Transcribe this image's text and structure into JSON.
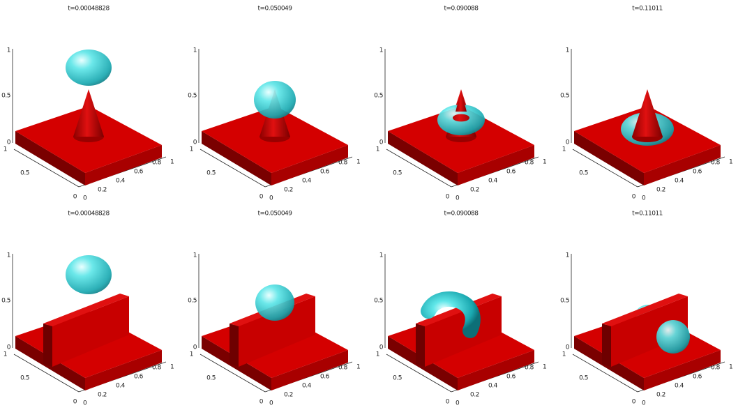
{
  "panels": [
    {
      "title": "t=0.00048828",
      "z_ticks": [
        "0",
        "0.5",
        "1"
      ],
      "y_ticks": [
        "0",
        "0.5",
        "1"
      ],
      "x_ticks": [
        "0",
        "0.2",
        "0.4",
        "0.6",
        "0.8",
        "1"
      ]
    },
    {
      "title": "t=0.050049",
      "z_ticks": [
        "0",
        "0.5",
        "1"
      ],
      "y_ticks": [
        "0",
        "0.5",
        "1"
      ],
      "x_ticks": [
        "0",
        "0.2",
        "0.4",
        "0.6",
        "0.8",
        "1"
      ]
    },
    {
      "title": "t=0.090088",
      "z_ticks": [
        "0",
        "0.5",
        "1"
      ],
      "y_ticks": [
        "0",
        "0.5",
        "1"
      ],
      "x_ticks": [
        "0",
        "0.2",
        "0.4",
        "0.6",
        "0.8",
        "1"
      ]
    },
    {
      "title": "t=0.11011",
      "z_ticks": [
        "0",
        "0.5",
        "1"
      ],
      "y_ticks": [
        "0",
        "0.5",
        "1"
      ],
      "x_ticks": [
        "0",
        "0.2",
        "0.4",
        "0.6",
        "0.8",
        "1"
      ]
    },
    {
      "title": "t=0.00048828",
      "z_ticks": [
        "0",
        "0.5",
        "1"
      ],
      "y_ticks": [
        "0",
        "0.5",
        "1"
      ],
      "x_ticks": [
        "0",
        "0.2",
        "0.4",
        "0.6",
        "0.8",
        "1"
      ]
    },
    {
      "title": "t=0.050049",
      "z_ticks": [
        "0",
        "0.5",
        "1"
      ],
      "y_ticks": [
        "0",
        "0.5",
        "1"
      ],
      "x_ticks": [
        "0",
        "0.2",
        "0.4",
        "0.6",
        "0.8",
        "1"
      ]
    },
    {
      "title": "t=0.090088",
      "z_ticks": [
        "0",
        "0.5",
        "1"
      ],
      "y_ticks": [
        "0",
        "0.5",
        "1"
      ],
      "x_ticks": [
        "0",
        "0.2",
        "0.4",
        "0.6",
        "0.8",
        "1"
      ]
    },
    {
      "title": "t=0.11011",
      "z_ticks": [
        "0",
        "0.5",
        "1"
      ],
      "y_ticks": [
        "0",
        "0.5",
        "1"
      ],
      "x_ticks": [
        "0",
        "0.2",
        "0.4",
        "0.6",
        "0.8",
        "1"
      ]
    }
  ]
}
